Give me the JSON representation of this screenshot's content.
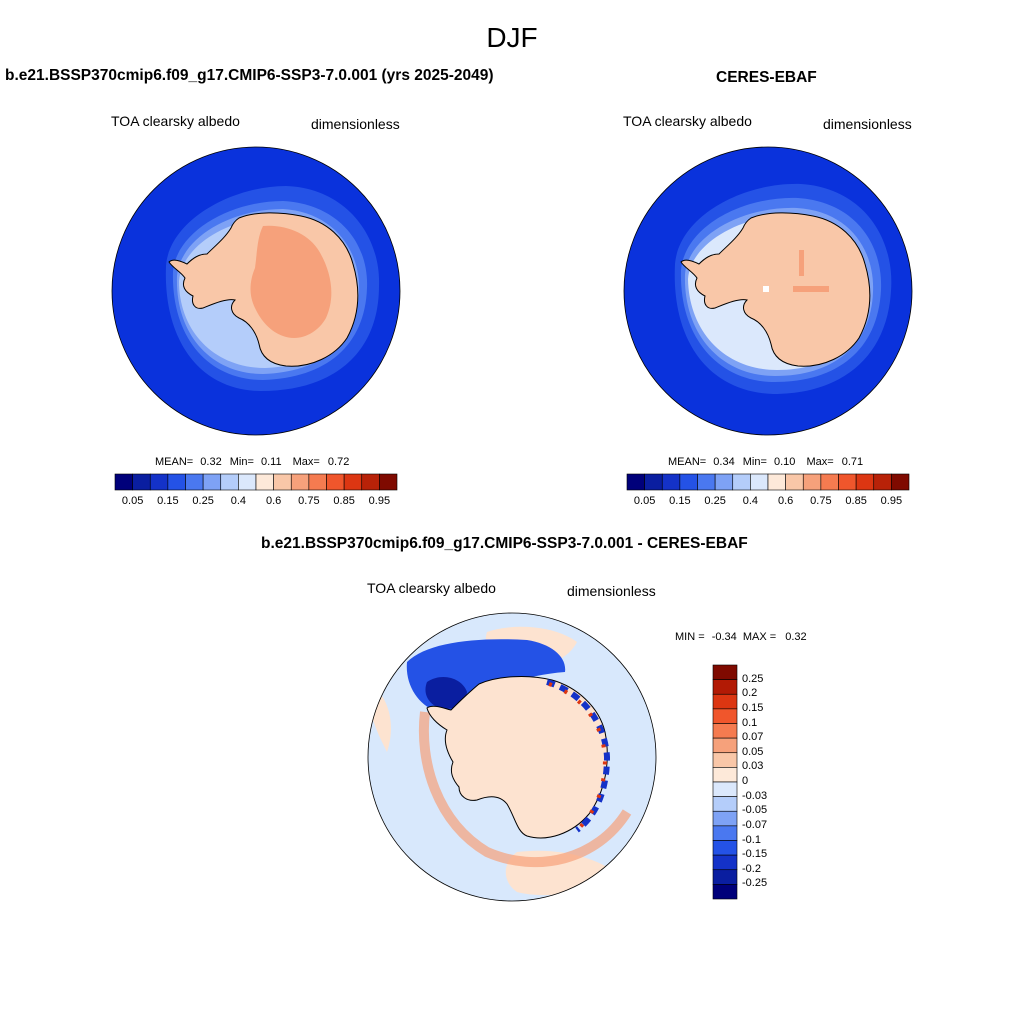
{
  "season": "DJF",
  "panels": [
    {
      "title": "b.e21.BSSP370cmip6.f09_g17.CMIP6-SSP3-7.0.001 (yrs 2025-2049)",
      "variable": "TOA clearsky albedo",
      "units": "dimensionless",
      "stats": {
        "mean_label": "MEAN=",
        "mean": "0.32",
        "min_label": "Min=",
        "min": "0.11",
        "max_label": "Max=",
        "max": "0.72"
      }
    },
    {
      "title": "CERES-EBAF",
      "variable": "TOA clearsky albedo",
      "units": "dimensionless",
      "stats": {
        "mean_label": "MEAN=",
        "mean": "0.34",
        "min_label": "Min=",
        "min": "0.10",
        "max_label": "Max=",
        "max": "0.71"
      }
    },
    {
      "title": "b.e21.BSSP370cmip6.f09_g17.CMIP6-SSP3-7.0.001 - CERES-EBAF",
      "variable": "TOA clearsky albedo",
      "units": "dimensionless",
      "stats": {
        "min_label": "MIN =",
        "min": "-0.34",
        "max_label": "MAX =",
        "max": "0.32"
      }
    }
  ],
  "colorbar_main": {
    "tick_labels": [
      "0.05",
      "0.15",
      "0.25",
      "0.4",
      "0.6",
      "0.75",
      "0.85",
      "0.95"
    ],
    "colors": [
      "#00007a",
      "#0a1ea0",
      "#1432c8",
      "#2452e6",
      "#4a78f0",
      "#7ea2f5",
      "#b4cdfa",
      "#dbe8fc",
      "#fde9d9",
      "#f9c7a8",
      "#f6a17b",
      "#f57b50",
      "#f0562c",
      "#dc3612",
      "#b82208",
      "#7f0a00"
    ]
  },
  "colorbar_diff": {
    "tick_labels": [
      "0.25",
      "0.2",
      "0.15",
      "0.1",
      "0.07",
      "0.05",
      "0.03",
      "0",
      "-0.03",
      "-0.05",
      "-0.07",
      "-0.1",
      "-0.15",
      "-0.2",
      "-0.25"
    ],
    "colors": [
      "#7f0a00",
      "#b21a05",
      "#dc3612",
      "#f0562c",
      "#f57b50",
      "#f6a17b",
      "#f9c7a8",
      "#fde9d9",
      "#dbe8fc",
      "#b4cdfa",
      "#7ea2f5",
      "#4a78f0",
      "#2452e6",
      "#1432c8",
      "#0a1ea0",
      "#00007a"
    ]
  },
  "map_colors": {
    "ocean_deep": "#0a32dc",
    "ocean_mid": "#2452e6",
    "sea_ice_1": "#4a78f0",
    "sea_ice_2": "#7ea2f5",
    "sea_ice_3": "#b4cdfa",
    "ice_edge": "#dbe8fc",
    "land": "#f9c7a8",
    "plateau": "#f6a17b",
    "diff_background": "#d8e8fc",
    "diff_positive": "#fde3d0"
  }
}
